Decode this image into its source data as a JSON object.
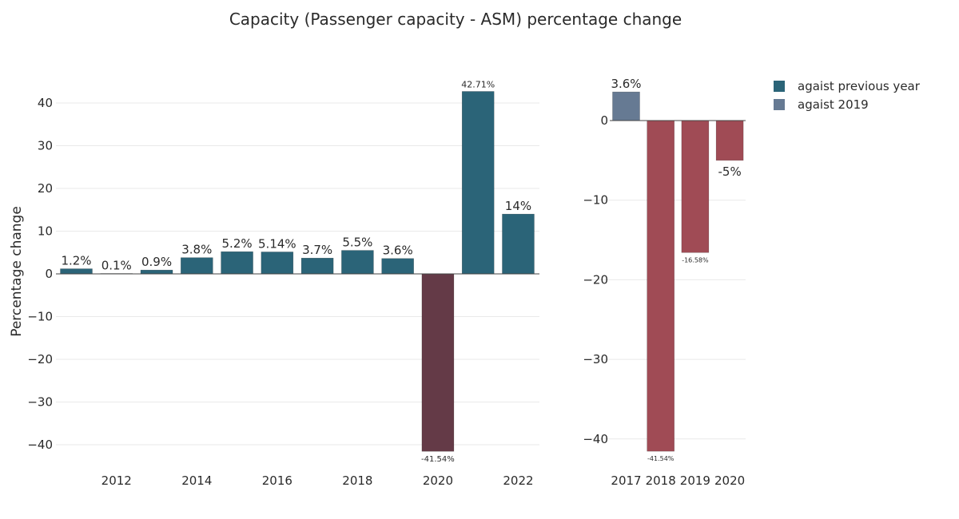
{
  "title": "Capacity (Passenger capacity - ASM) percentage change",
  "colors": {
    "positive": "#2b6478",
    "negative_2020": "#643a47",
    "vs2019_positive": "#667a93",
    "vs2019_negative": "#a04b55"
  },
  "legend": [
    {
      "label": "agaist previous year",
      "color": "#2b6478"
    },
    {
      "label": "agaist 2019",
      "color": "#667a93"
    }
  ],
  "chart_data": [
    {
      "type": "bar",
      "ylabel": "Percentage change",
      "ylim": [
        -45,
        45
      ],
      "yticks": [
        40,
        30,
        20,
        10,
        0,
        -10,
        -20,
        -30,
        -40
      ],
      "x": [
        2011,
        2012,
        2013,
        2014,
        2015,
        2016,
        2017,
        2018,
        2019,
        2020,
        2021,
        2022
      ],
      "xticks": [
        "2012",
        "2014",
        "2016",
        "2018",
        "2020",
        "2022"
      ],
      "values": [
        1.2,
        0.1,
        0.9,
        3.8,
        5.2,
        5.14,
        3.7,
        5.5,
        3.6,
        -41.54,
        42.71,
        14
      ],
      "labels": [
        "1.2%",
        "0.1%",
        "0.9%",
        "3.8%",
        "5.2%",
        "5.14%",
        "3.7%",
        "5.5%",
        "3.6%",
        "-41.54%",
        "42.71%",
        "14%"
      ],
      "series": [
        {
          "name": "agaist previous year"
        }
      ]
    },
    {
      "type": "bar",
      "ylim": [
        -45,
        4
      ],
      "yticks": [
        0,
        -10,
        -20,
        -30,
        -40
      ],
      "categories": [
        "2017",
        "2018",
        "2019",
        "2020"
      ],
      "values": [
        3.6,
        -41.54,
        -16.58,
        -5
      ],
      "labels": [
        "3.6%",
        "-41.54%",
        "-16.58%",
        "-5%"
      ],
      "series": [
        {
          "name": "agaist 2019"
        }
      ]
    }
  ]
}
